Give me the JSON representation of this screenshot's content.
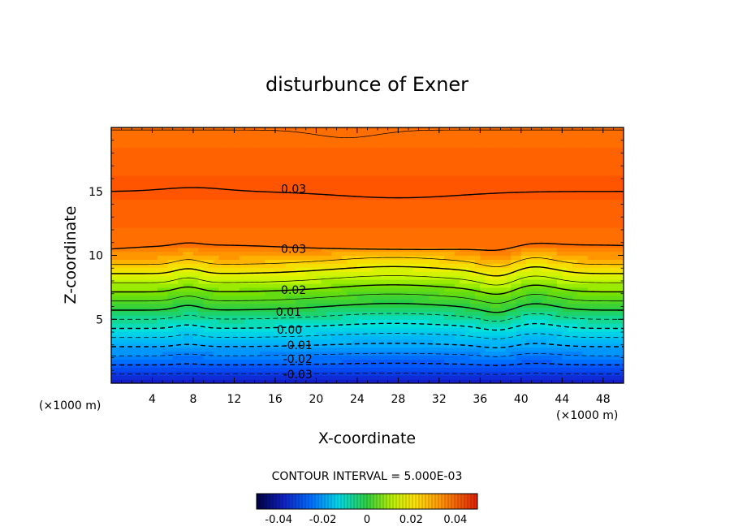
{
  "chart_data": {
    "type": "contour",
    "title": "disturbunce of Exner",
    "xlabel": "X-coordinate",
    "ylabel": "Z-coordinate",
    "x_unit": "(×1000 m)",
    "z_unit": "(×1000 m)",
    "xlim": [
      0,
      50
    ],
    "ylim": [
      0,
      20
    ],
    "x_ticks": [
      4,
      8,
      12,
      16,
      20,
      24,
      28,
      32,
      36,
      40,
      44,
      48
    ],
    "y_ticks": [
      5,
      10,
      15
    ],
    "contour_interval_text": "CONTOUR INTERVAL = 5.000E-03",
    "colorbar": {
      "range": [
        -0.05,
        0.05
      ],
      "ticks": [
        -0.04,
        -0.02,
        0,
        0.02,
        0.04
      ],
      "tick_labels": [
        "-0.04",
        "-0.02",
        "0",
        "0.02",
        "0.04"
      ]
    },
    "contour_labels": [
      {
        "text": "0.03",
        "x": 17.8,
        "z": 15.2
      },
      {
        "text": "0.03",
        "x": 17.8,
        "z": 10.5
      },
      {
        "text": "0.02",
        "x": 17.8,
        "z": 7.3
      },
      {
        "text": "0.01",
        "x": 17.3,
        "z": 5.6
      },
      {
        "text": "0.00",
        "x": 17.4,
        "z": 4.2
      },
      {
        "text": "-0.01",
        "x": 18.2,
        "z": 3.0
      },
      {
        "text": "-0.02",
        "x": 18.2,
        "z": 1.9
      },
      {
        "text": "-0.03",
        "x": 18.2,
        "z": 0.7
      }
    ]
  }
}
